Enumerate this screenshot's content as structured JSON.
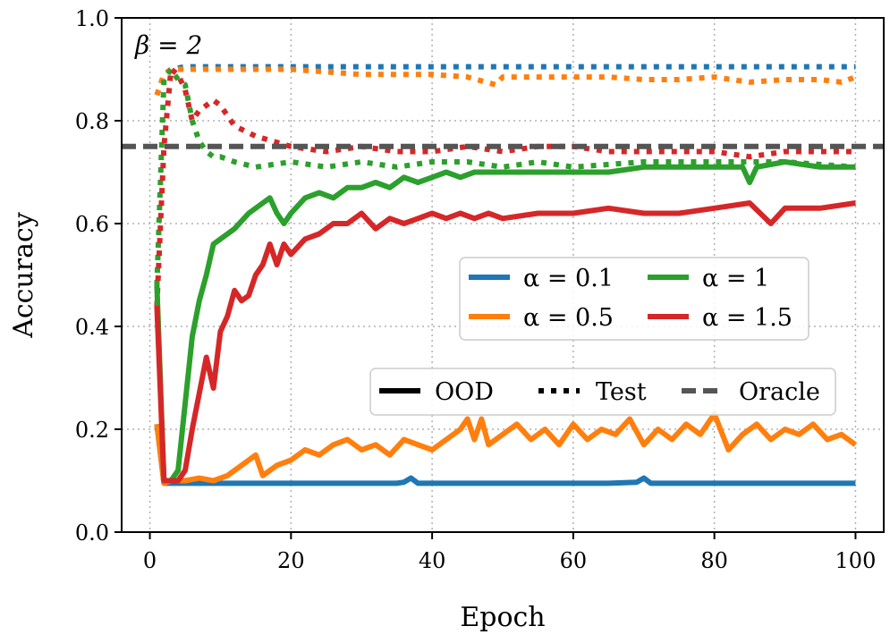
{
  "chart_data": {
    "type": "line",
    "title": "",
    "annotation": "β = 2",
    "xlabel": "Epoch",
    "ylabel": "Accuracy",
    "xlim": [
      -4,
      104
    ],
    "ylim": [
      0.0,
      1.0
    ],
    "xticks": [
      0,
      20,
      40,
      60,
      80,
      100
    ],
    "yticks": [
      0.0,
      0.2,
      0.4,
      0.6,
      0.8,
      1.0
    ],
    "xtick_labels": [
      "0",
      "20",
      "40",
      "60",
      "80",
      "100"
    ],
    "ytick_labels": [
      "0.0",
      "0.2",
      "0.4",
      "0.6",
      "0.8",
      "1.0"
    ],
    "grid": true,
    "oracle": {
      "label": "Oracle",
      "value": 0.75,
      "color": "#555555"
    },
    "style_legend": [
      {
        "label": "OOD",
        "style": "solid"
      },
      {
        "label": "Test",
        "style": "dotted"
      },
      {
        "label": "Oracle",
        "style": "dashed"
      }
    ],
    "alpha_legend": [
      {
        "label": "α = 0.1",
        "color": "#1f77b4"
      },
      {
        "label": "α = 0.5",
        "color": "#ff7f0e"
      },
      {
        "label": "α = 1",
        "color": "#2ca02c"
      },
      {
        "label": "α = 1.5",
        "color": "#d62728"
      }
    ],
    "series": [
      {
        "name": "α=0.1 OOD",
        "color": "#1f77b4",
        "style": "solid",
        "x": [
          1,
          2,
          3,
          5,
          10,
          15,
          20,
          25,
          30,
          35,
          36,
          37,
          38,
          40,
          45,
          50,
          55,
          60,
          65,
          69,
          70,
          71,
          75,
          80,
          85,
          90,
          95,
          100
        ],
        "y": [
          0.21,
          0.095,
          0.095,
          0.095,
          0.095,
          0.095,
          0.095,
          0.095,
          0.095,
          0.095,
          0.097,
          0.105,
          0.095,
          0.095,
          0.095,
          0.095,
          0.095,
          0.095,
          0.095,
          0.097,
          0.105,
          0.095,
          0.095,
          0.095,
          0.095,
          0.095,
          0.095,
          0.095
        ]
      },
      {
        "name": "α=0.5 OOD",
        "color": "#ff7f0e",
        "style": "solid",
        "x": [
          1,
          2,
          3,
          5,
          7,
          9,
          11,
          13,
          15,
          16,
          18,
          20,
          22,
          24,
          26,
          28,
          30,
          32,
          34,
          36,
          38,
          40,
          42,
          44,
          45,
          46,
          47,
          48,
          50,
          52,
          54,
          56,
          58,
          60,
          62,
          64,
          66,
          68,
          70,
          72,
          74,
          76,
          78,
          80,
          82,
          84,
          86,
          88,
          90,
          92,
          94,
          96,
          98,
          100
        ],
        "y": [
          0.21,
          0.095,
          0.1,
          0.1,
          0.105,
          0.1,
          0.11,
          0.13,
          0.15,
          0.11,
          0.13,
          0.14,
          0.16,
          0.15,
          0.17,
          0.18,
          0.16,
          0.17,
          0.15,
          0.18,
          0.17,
          0.16,
          0.18,
          0.2,
          0.22,
          0.18,
          0.22,
          0.17,
          0.19,
          0.21,
          0.18,
          0.2,
          0.17,
          0.21,
          0.18,
          0.2,
          0.19,
          0.22,
          0.17,
          0.2,
          0.18,
          0.21,
          0.19,
          0.23,
          0.16,
          0.19,
          0.21,
          0.18,
          0.2,
          0.19,
          0.21,
          0.18,
          0.19,
          0.17
        ]
      },
      {
        "name": "α=1 OOD",
        "color": "#2ca02c",
        "style": "solid",
        "x": [
          1,
          2,
          3,
          4,
          5,
          6,
          7,
          8,
          9,
          10,
          12,
          14,
          16,
          17,
          18,
          19,
          20,
          22,
          24,
          26,
          28,
          30,
          32,
          34,
          36,
          38,
          40,
          42,
          44,
          46,
          48,
          50,
          55,
          60,
          65,
          70,
          75,
          80,
          84,
          85,
          86,
          90,
          95,
          100
        ],
        "y": [
          0.48,
          0.1,
          0.1,
          0.12,
          0.25,
          0.38,
          0.45,
          0.5,
          0.56,
          0.57,
          0.59,
          0.62,
          0.64,
          0.65,
          0.62,
          0.6,
          0.62,
          0.65,
          0.66,
          0.65,
          0.67,
          0.67,
          0.68,
          0.67,
          0.69,
          0.68,
          0.69,
          0.7,
          0.69,
          0.7,
          0.7,
          0.7,
          0.7,
          0.7,
          0.7,
          0.71,
          0.71,
          0.71,
          0.71,
          0.68,
          0.71,
          0.72,
          0.71,
          0.71
        ]
      },
      {
        "name": "α=1.5 OOD",
        "color": "#d62728",
        "style": "solid",
        "x": [
          1,
          2,
          3,
          4,
          5,
          6,
          7,
          8,
          9,
          10,
          11,
          12,
          13,
          14,
          15,
          16,
          17,
          18,
          19,
          20,
          22,
          24,
          26,
          28,
          30,
          32,
          34,
          36,
          38,
          40,
          42,
          44,
          46,
          48,
          50,
          55,
          60,
          65,
          70,
          75,
          80,
          85,
          88,
          90,
          95,
          100
        ],
        "y": [
          0.44,
          0.1,
          0.1,
          0.1,
          0.12,
          0.2,
          0.27,
          0.34,
          0.28,
          0.39,
          0.42,
          0.47,
          0.45,
          0.46,
          0.5,
          0.52,
          0.56,
          0.52,
          0.56,
          0.54,
          0.57,
          0.58,
          0.6,
          0.6,
          0.62,
          0.59,
          0.61,
          0.6,
          0.61,
          0.62,
          0.61,
          0.62,
          0.61,
          0.62,
          0.61,
          0.62,
          0.62,
          0.63,
          0.62,
          0.62,
          0.63,
          0.64,
          0.6,
          0.63,
          0.63,
          0.64
        ]
      },
      {
        "name": "α=0.1 Test",
        "color": "#1f77b4",
        "style": "dotted",
        "x": [
          1,
          2,
          3,
          5,
          10,
          20,
          30,
          40,
          50,
          60,
          70,
          80,
          90,
          100
        ],
        "y": [
          0.85,
          0.89,
          0.9,
          0.905,
          0.905,
          0.905,
          0.905,
          0.905,
          0.905,
          0.905,
          0.905,
          0.905,
          0.905,
          0.905
        ]
      },
      {
        "name": "α=0.5 Test",
        "color": "#ff7f0e",
        "style": "dotted",
        "x": [
          1,
          2,
          3,
          5,
          10,
          20,
          30,
          40,
          45,
          49,
          50,
          55,
          60,
          65,
          70,
          75,
          80,
          85,
          90,
          95,
          98,
          100
        ],
        "y": [
          0.85,
          0.89,
          0.9,
          0.9,
          0.9,
          0.9,
          0.89,
          0.89,
          0.885,
          0.87,
          0.885,
          0.885,
          0.885,
          0.885,
          0.88,
          0.88,
          0.885,
          0.875,
          0.88,
          0.88,
          0.875,
          0.885
        ]
      },
      {
        "name": "α=1 Test",
        "color": "#2ca02c",
        "style": "dotted",
        "x": [
          1,
          2,
          3,
          4,
          5,
          6,
          7,
          8,
          9,
          10,
          12,
          15,
          20,
          25,
          30,
          35,
          40,
          45,
          50,
          55,
          60,
          70,
          80,
          90,
          100
        ],
        "y": [
          0.48,
          0.88,
          0.9,
          0.88,
          0.87,
          0.8,
          0.76,
          0.74,
          0.73,
          0.73,
          0.72,
          0.71,
          0.72,
          0.71,
          0.72,
          0.71,
          0.72,
          0.72,
          0.71,
          0.72,
          0.71,
          0.72,
          0.72,
          0.72,
          0.71
        ]
      },
      {
        "name": "α=1.5 Test",
        "color": "#d62728",
        "style": "dotted",
        "x": [
          1,
          2,
          3,
          4,
          5,
          6,
          7,
          8,
          9,
          10,
          12,
          15,
          20,
          25,
          30,
          35,
          40,
          45,
          50,
          55,
          60,
          65,
          70,
          75,
          80,
          85,
          90,
          95,
          100
        ],
        "y": [
          0.44,
          0.75,
          0.9,
          0.89,
          0.86,
          0.8,
          0.82,
          0.83,
          0.84,
          0.83,
          0.79,
          0.77,
          0.75,
          0.74,
          0.75,
          0.74,
          0.74,
          0.75,
          0.74,
          0.75,
          0.75,
          0.74,
          0.74,
          0.74,
          0.74,
          0.73,
          0.74,
          0.74,
          0.74
        ]
      }
    ]
  }
}
